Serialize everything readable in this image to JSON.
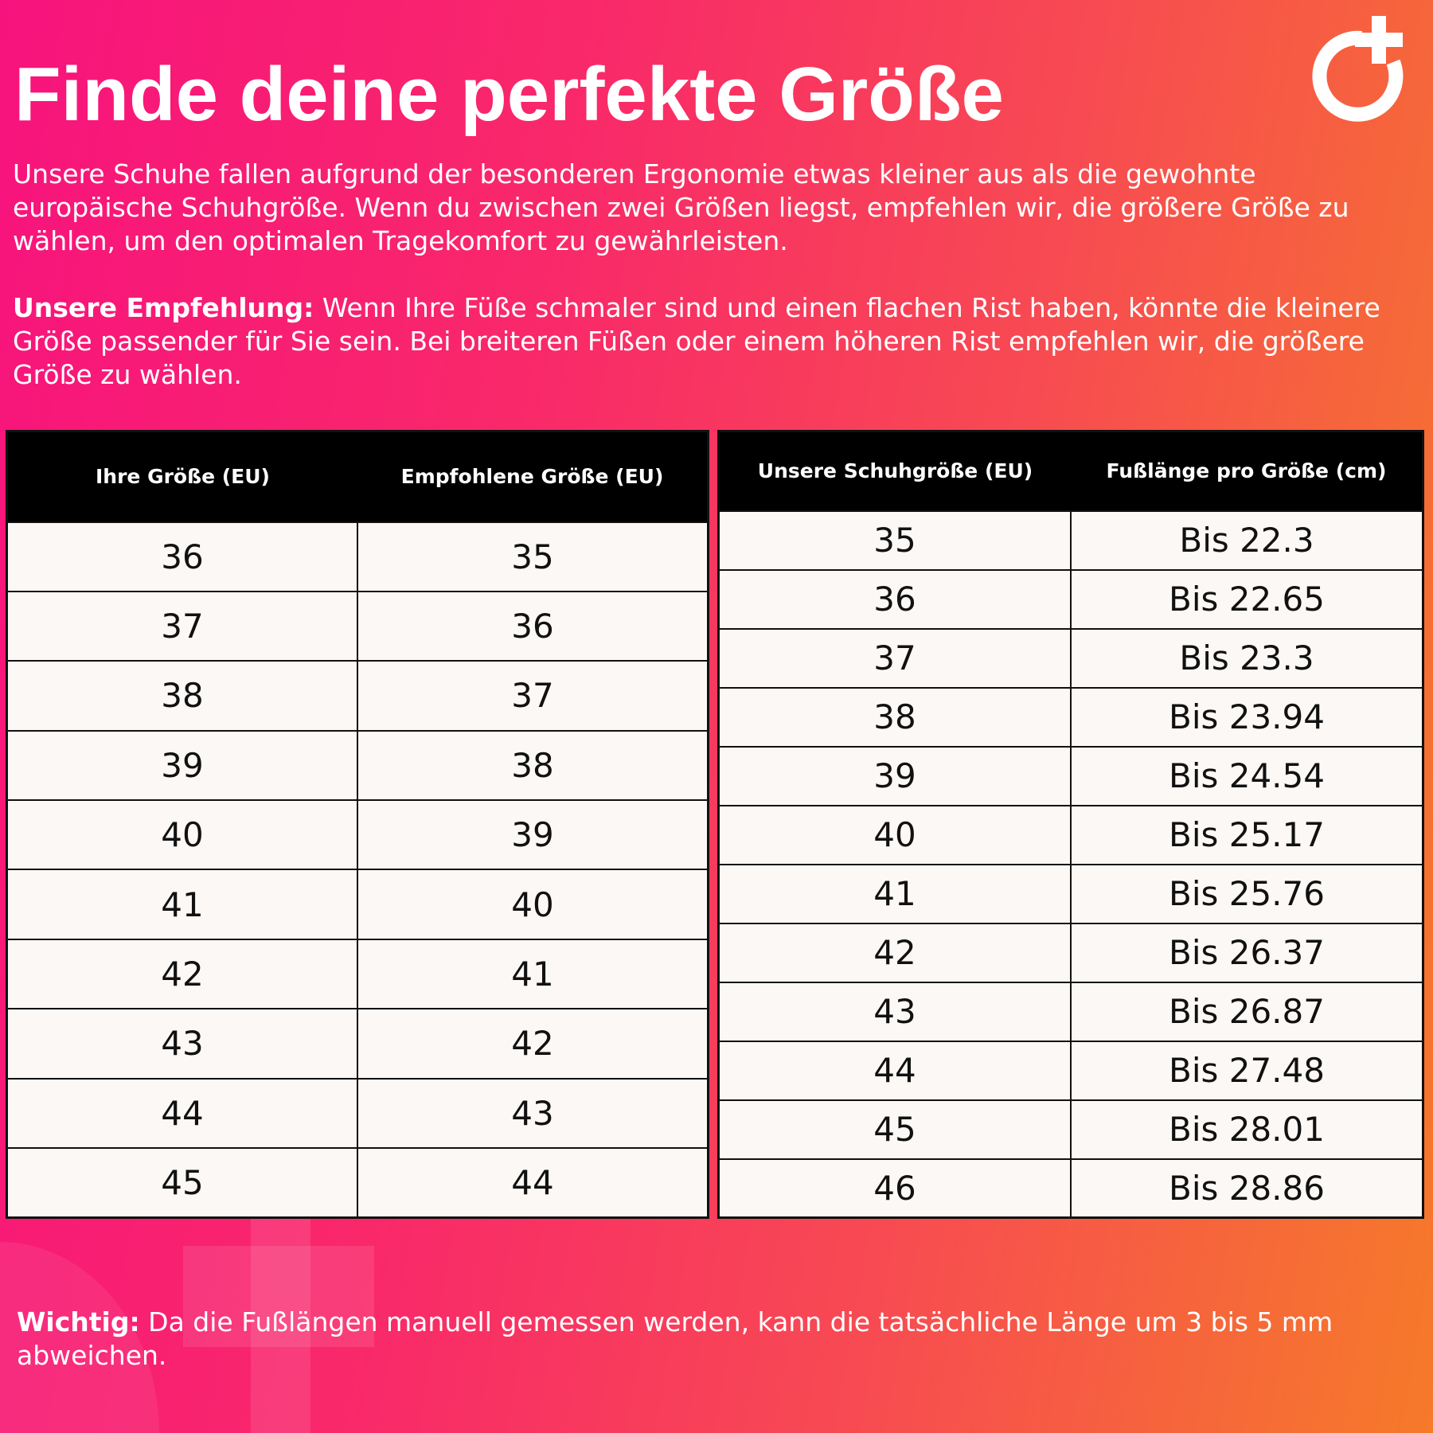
{
  "title": "Finde deine perfekte Größe",
  "intro": "Unsere Schuhe fallen aufgrund der besonderen Ergonomie etwas kleiner aus als die gewohnte europäische Schuhgröße. Wenn du zwischen zwei Größen liegst, empfehlen wir, die größere Größe zu wählen, um den optimalen Tragekomfort zu gewährleisten.",
  "recommendation": {
    "label": "Unsere Empfehlung:",
    "text": " Wenn Ihre Füße schmaler sind und einen flachen Rist haben, könnte die kleinere Größe passender für Sie sein. Bei breiteren Füßen oder einem höheren Rist empfehlen wir, die größere Größe zu wählen."
  },
  "logo": "circle-plus-logo",
  "table_left": {
    "headers": [
      "Ihre Größe (EU)",
      "Empfohlene Größe (EU)"
    ],
    "rows": [
      [
        "36",
        "35"
      ],
      [
        "37",
        "36"
      ],
      [
        "38",
        "37"
      ],
      [
        "39",
        "38"
      ],
      [
        "40",
        "39"
      ],
      [
        "41",
        "40"
      ],
      [
        "42",
        "41"
      ],
      [
        "43",
        "42"
      ],
      [
        "44",
        "43"
      ],
      [
        "45",
        "44"
      ]
    ]
  },
  "table_right": {
    "headers": [
      "Unsere Schuhgröße (EU)",
      "Fußlänge pro Größe (cm)"
    ],
    "rows": [
      [
        "35",
        "Bis 22.3"
      ],
      [
        "36",
        "Bis 22.65"
      ],
      [
        "37",
        "Bis 23.3"
      ],
      [
        "38",
        "Bis 23.94"
      ],
      [
        "39",
        "Bis 24.54"
      ],
      [
        "40",
        "Bis 25.17"
      ],
      [
        "41",
        "Bis 25.76"
      ],
      [
        "42",
        "Bis 26.37"
      ],
      [
        "43",
        "Bis 26.87"
      ],
      [
        "44",
        "Bis 27.48"
      ],
      [
        "45",
        "Bis 28.01"
      ],
      [
        "46",
        "Bis 28.86"
      ]
    ]
  },
  "note": {
    "label": "Wichtig:",
    "text": " Da die Fußlängen manuell gemessen werden, kann die tatsächliche Länge um 3 bis 5 mm abweichen."
  },
  "colors": {
    "gradient_start": "#f7137d",
    "gradient_end": "#f67a2a",
    "table_header": "#000000",
    "cell_bg": "#fcf8f5"
  }
}
